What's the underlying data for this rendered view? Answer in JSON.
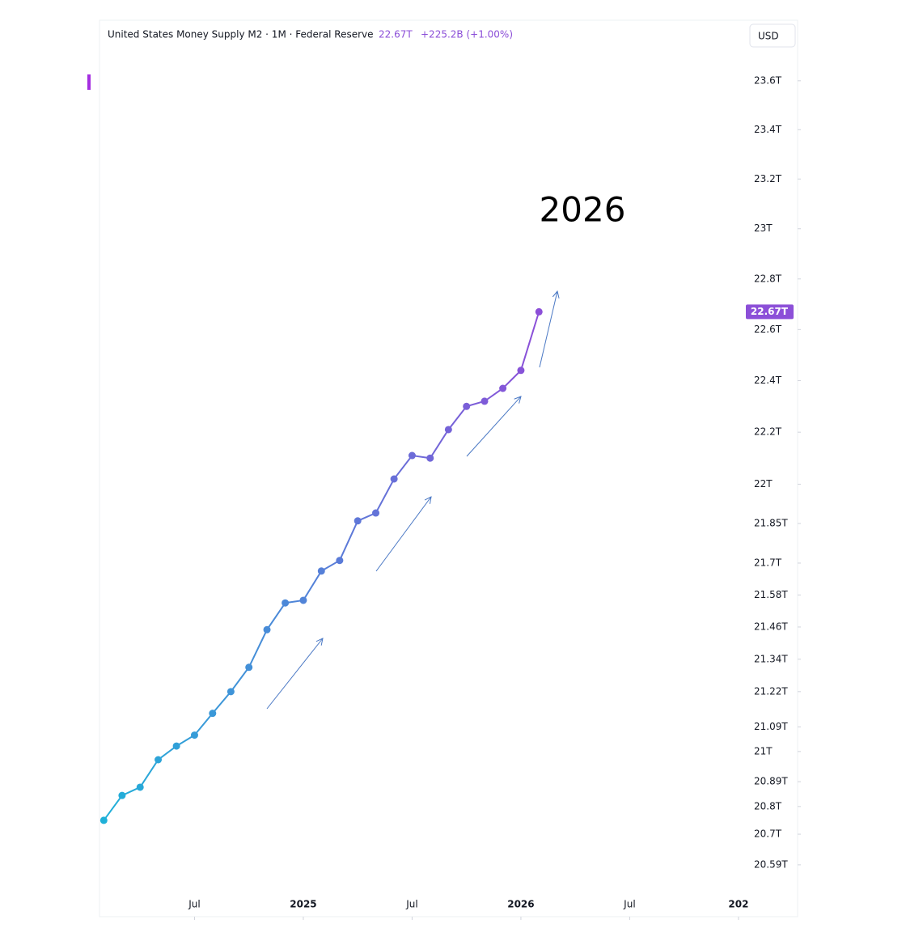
{
  "chart_data": {
    "type": "line",
    "title": "United States Money Supply M2 · 1M · Federal Reserve",
    "last_value": "22.67T",
    "change": "+225.2B (+1.00%)",
    "currency": "USD",
    "annotation": "2026",
    "x": [
      2024.083,
      2024.167,
      2024.25,
      2024.333,
      2024.417,
      2024.5,
      2024.583,
      2024.667,
      2024.75,
      2024.833,
      2024.917,
      2025,
      2025.083,
      2025.167,
      2025.25,
      2025.333,
      2025.417,
      2025.5,
      2025.583,
      2025.667,
      2025.75,
      2025.833,
      2025.917,
      2026,
      2026.083
    ],
    "values": [
      20.75,
      20.84,
      20.87,
      20.97,
      21.02,
      21.06,
      21.14,
      21.22,
      21.31,
      21.45,
      21.55,
      21.56,
      21.67,
      21.71,
      21.86,
      21.89,
      22.02,
      22.11,
      22.1,
      22.21,
      22.3,
      22.32,
      22.37,
      22.44,
      22.67
    ],
    "value_labels": [
      null,
      null,
      null,
      null,
      null,
      null,
      null,
      null,
      null,
      null,
      null,
      null,
      null,
      null,
      null,
      null,
      null,
      null,
      null,
      null,
      null,
      null,
      null,
      null,
      "22.67T"
    ],
    "color": "#1fb0d8",
    "color_end": "#8c4fd8",
    "log_scale": true,
    "xlim": [
      2024.067,
      2027.268
    ],
    "xticks": [
      {
        "value": 2024.5,
        "label": "Jul"
      },
      2025,
      {
        "value": 2025.5,
        "label": "Jul"
      },
      2026,
      {
        "value": 2026.5,
        "label": "Jul"
      },
      {
        "value": 2027,
        "label": "202"
      }
    ],
    "ylim": [
      20.5,
      23.85
    ],
    "yticks": [
      {
        "value": 20.59,
        "label": "20.59T"
      },
      {
        "value": 20.7,
        "label": "20.7T"
      },
      {
        "value": 20.8,
        "label": "20.8T"
      },
      {
        "value": 20.89,
        "label": "20.89T"
      },
      {
        "value": 21,
        "label": "21T"
      },
      {
        "value": 21.09,
        "label": "21.09T"
      },
      {
        "value": 21.22,
        "label": "21.22T"
      },
      {
        "value": 21.34,
        "label": "21.34T"
      },
      {
        "value": 21.46,
        "label": "21.46T"
      },
      {
        "value": 21.58,
        "label": "21.58T"
      },
      {
        "value": 21.7,
        "label": "21.7T"
      },
      {
        "value": 21.85,
        "label": "21.85T"
      },
      {
        "value": 22,
        "label": "22T"
      },
      {
        "value": 22.2,
        "label": "22.2T"
      },
      {
        "value": 22.4,
        "label": "22.4T"
      },
      {
        "value": 22.6,
        "label": "22.6T"
      },
      {
        "value": 22.8,
        "label": "22.8T"
      },
      {
        "value": 23,
        "label": "23T"
      },
      {
        "value": 23.2,
        "label": "23.2T"
      },
      {
        "value": 23.4,
        "label": "23.4T"
      },
      {
        "value": 23.6,
        "label": "23.6T"
      }
    ],
    "grid": false
  }
}
